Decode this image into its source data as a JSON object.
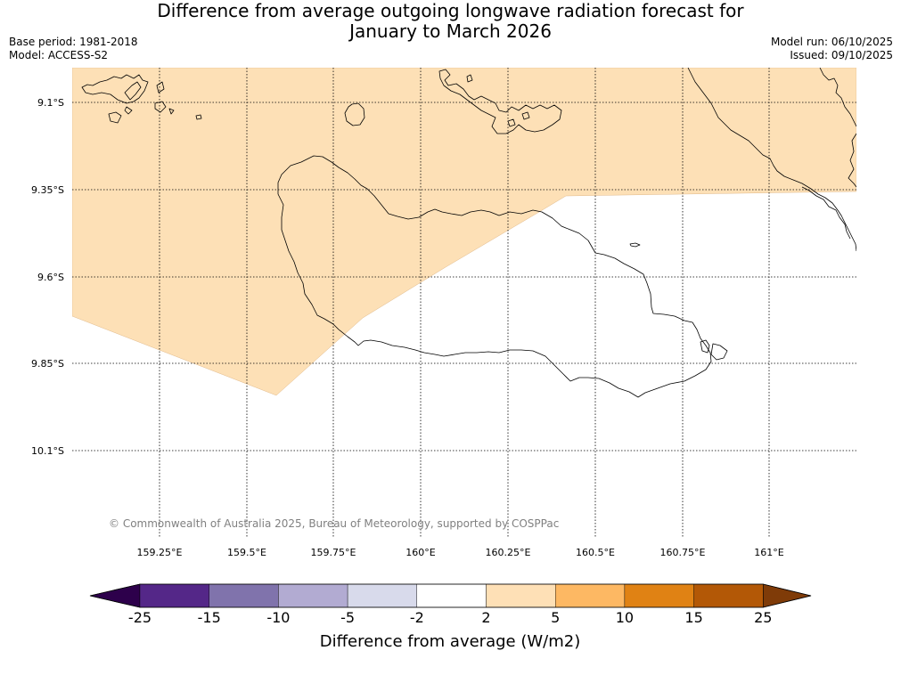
{
  "title": {
    "line1": "Difference from average outgoing longwave radiation forecast for",
    "line2": "January to March 2026"
  },
  "meta": {
    "base_period": "Base period: 1981-2018",
    "model": "Model: ACCESS-S2",
    "model_run": "Model run: 06/10/2025",
    "issued": "Issued: 09/10/2025"
  },
  "map": {
    "lat_labels": [
      "9.1°S",
      "9.35°S",
      "9.6°S",
      "9.85°S",
      "10.1°S"
    ],
    "lon_labels": [
      "159.25°E",
      "159.5°E",
      "159.75°E",
      "160°E",
      "160.25°E",
      "160.5°E",
      "160.75°E",
      "161°E"
    ],
    "credit": "© Commonwealth of Australia 2025, Bureau of Meteorology, supported by COSPPac",
    "region_shaded": "2 to 5 W/m2",
    "colors": {
      "positive_2_5": "#fde0b6",
      "coast": "#000000",
      "grid": "#000000"
    }
  },
  "colorbar": {
    "title": "Difference from average (W/m2)",
    "ticks": [
      "-25",
      "-15",
      "-10",
      "-5",
      "-2",
      "2",
      "5",
      "10",
      "15",
      "25"
    ],
    "colors": [
      "#2d004b",
      "#542788",
      "#8073ac",
      "#b2abd2",
      "#d8daeb",
      "#ffffff",
      "#fee0b6",
      "#fdb863",
      "#e08214",
      "#b35806",
      "#7f3b08"
    ]
  }
}
